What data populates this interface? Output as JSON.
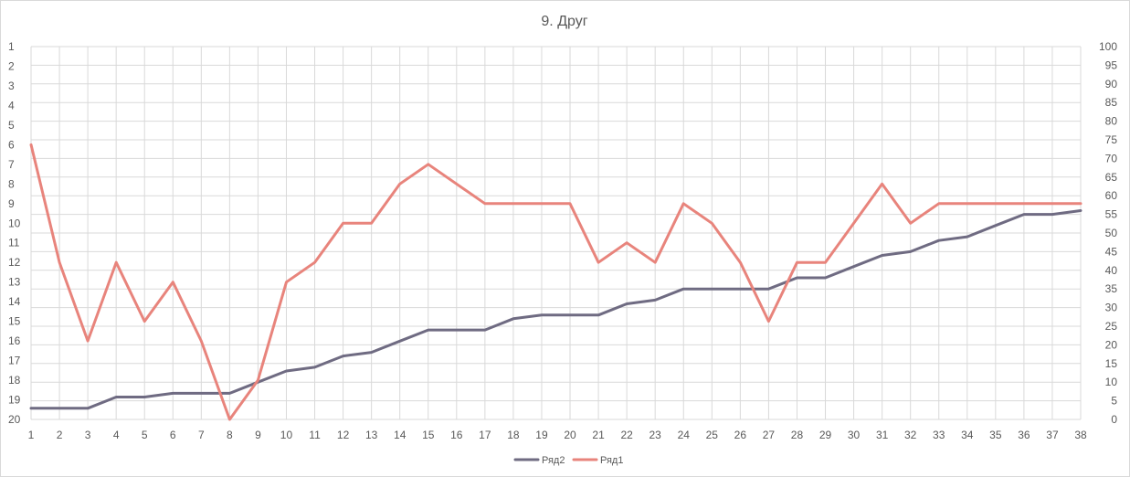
{
  "chart_data": {
    "type": "line",
    "title": "9. Друг",
    "x": [
      1,
      2,
      3,
      4,
      5,
      6,
      7,
      8,
      9,
      10,
      11,
      12,
      13,
      14,
      15,
      16,
      17,
      18,
      19,
      20,
      21,
      22,
      23,
      24,
      25,
      26,
      27,
      28,
      29,
      30,
      31,
      32,
      33,
      34,
      35,
      36,
      37,
      38
    ],
    "x_tick_labels": [
      "1",
      "2",
      "3",
      "4",
      "5",
      "6",
      "7",
      "8",
      "9",
      "10",
      "11",
      "12",
      "13",
      "14",
      "15",
      "16",
      "17",
      "18",
      "19",
      "20",
      "21",
      "22",
      "23",
      "24",
      "25",
      "26",
      "27",
      "28",
      "29",
      "30",
      "31",
      "32",
      "33",
      "34",
      "35",
      "36",
      "37",
      "38"
    ],
    "left_axis": {
      "tick_labels": [
        "1",
        "2",
        "3",
        "4",
        "5",
        "6",
        "7",
        "8",
        "9",
        "10",
        "11",
        "12",
        "13",
        "14",
        "15",
        "16",
        "17",
        "18",
        "19",
        "20"
      ],
      "reversed": true,
      "range": [
        1,
        20
      ]
    },
    "right_axis": {
      "tick_labels": [
        "0",
        "5",
        "10",
        "15",
        "20",
        "25",
        "30",
        "35",
        "40",
        "45",
        "50",
        "55",
        "60",
        "65",
        "70",
        "75",
        "80",
        "85",
        "90",
        "95",
        "100"
      ],
      "range": [
        0,
        100
      ]
    },
    "grid": true,
    "legend_position": "bottom",
    "series": [
      {
        "name": "Ряд2",
        "color": "#6f6b82",
        "axis": "right",
        "values": [
          3,
          3,
          3,
          6,
          6,
          7,
          7,
          7,
          10,
          13,
          14,
          17,
          18,
          21,
          24,
          24,
          24,
          27,
          28,
          28,
          28,
          31,
          32,
          35,
          35,
          35,
          35,
          38,
          38,
          41,
          44,
          45,
          48,
          49,
          52,
          55,
          55,
          56
        ]
      },
      {
        "name": "Ряд1",
        "color": "#e8847c",
        "axis": "left",
        "values": [
          6,
          12,
          16,
          12,
          15,
          13,
          16,
          20,
          18,
          13,
          12,
          10,
          10,
          8,
          7,
          8,
          9,
          9,
          9,
          9,
          12,
          11,
          12,
          9,
          10,
          12,
          15,
          12,
          12,
          10,
          8,
          10,
          9,
          9,
          9,
          9,
          9,
          9
        ]
      }
    ]
  }
}
